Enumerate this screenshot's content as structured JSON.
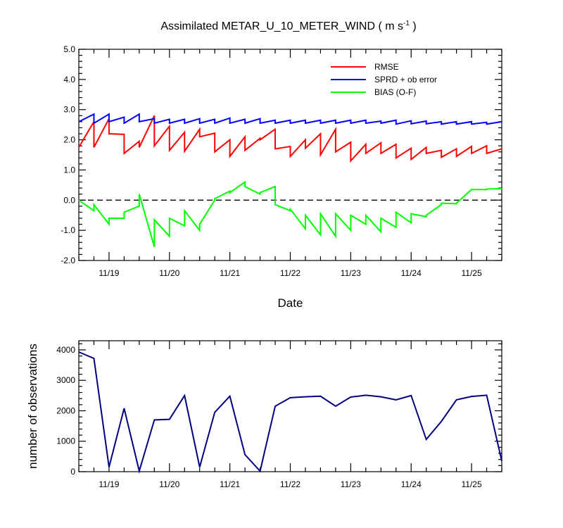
{
  "chart_data": [
    {
      "type": "line",
      "title": "Assimilated METAR_U_10_METER_WIND ( m s",
      "title_unit_exponent": "-1",
      "title_close": " )",
      "xlabel": "Date",
      "ylabel": "",
      "xlim": [
        18.5,
        25.5
      ],
      "ylim": [
        -2.0,
        5.0
      ],
      "yticks": [
        -2.0,
        -1.0,
        0.0,
        1.0,
        2.0,
        3.0,
        4.0,
        5.0
      ],
      "ytick_labels": [
        "-2.0",
        "-1.0",
        "0.0",
        "1.0",
        "2.0",
        "3.0",
        "4.0",
        "5.0"
      ],
      "xticks": [
        19,
        20,
        21,
        22,
        23,
        24,
        25
      ],
      "xtick_labels": [
        "11/19",
        "11/20",
        "11/21",
        "11/22",
        "11/23",
        "11/24",
        "11/25"
      ],
      "zero_line": true,
      "legend_position": "top-right",
      "series": [
        {
          "name": "RMSE",
          "color": "#ff0000",
          "points": [
            [
              18.5,
              1.75
            ],
            [
              18.75,
              2.6
            ],
            [
              18.75,
              1.75
            ],
            [
              19.0,
              2.7
            ],
            [
              19.0,
              2.2
            ],
            [
              19.25,
              2.18
            ],
            [
              19.25,
              1.55
            ],
            [
              19.5,
              1.95
            ],
            [
              19.5,
              1.75
            ],
            [
              19.75,
              2.8
            ],
            [
              19.75,
              1.8
            ],
            [
              20.0,
              2.45
            ],
            [
              20.0,
              1.65
            ],
            [
              20.25,
              2.25
            ],
            [
              20.25,
              1.62
            ],
            [
              20.5,
              2.35
            ],
            [
              20.5,
              2.1
            ],
            [
              20.75,
              2.22
            ],
            [
              20.75,
              1.6
            ],
            [
              21.0,
              2.0
            ],
            [
              21.0,
              1.45
            ],
            [
              21.25,
              2.1
            ],
            [
              21.25,
              1.65
            ],
            [
              21.5,
              2.05
            ],
            [
              21.5,
              2.0
            ],
            [
              21.75,
              2.35
            ],
            [
              21.75,
              1.7
            ],
            [
              22.0,
              1.78
            ],
            [
              22.0,
              1.45
            ],
            [
              22.25,
              2.0
            ],
            [
              22.25,
              1.72
            ],
            [
              22.5,
              2.2
            ],
            [
              22.5,
              1.5
            ],
            [
              22.75,
              2.35
            ],
            [
              22.75,
              1.6
            ],
            [
              23.0,
              1.92
            ],
            [
              23.0,
              1.3
            ],
            [
              23.25,
              1.85
            ],
            [
              23.25,
              1.55
            ],
            [
              23.5,
              1.9
            ],
            [
              23.5,
              1.55
            ],
            [
              23.75,
              1.85
            ],
            [
              23.75,
              1.4
            ],
            [
              24.0,
              1.72
            ],
            [
              24.0,
              1.35
            ],
            [
              24.25,
              1.75
            ],
            [
              24.25,
              1.55
            ],
            [
              24.5,
              1.65
            ],
            [
              24.5,
              1.42
            ],
            [
              24.75,
              1.7
            ],
            [
              24.75,
              1.45
            ],
            [
              25.0,
              1.78
            ],
            [
              25.0,
              1.55
            ],
            [
              25.25,
              1.8
            ],
            [
              25.25,
              1.55
            ],
            [
              25.5,
              1.7
            ]
          ]
        },
        {
          "name": "SPRD + ob error",
          "color": "#0000ff",
          "points": [
            [
              18.5,
              2.6
            ],
            [
              18.75,
              2.85
            ],
            [
              18.75,
              2.55
            ],
            [
              19.0,
              2.85
            ],
            [
              19.0,
              2.6
            ],
            [
              19.25,
              2.75
            ],
            [
              19.25,
              2.55
            ],
            [
              19.5,
              2.85
            ],
            [
              19.5,
              2.6
            ],
            [
              19.75,
              2.7
            ],
            [
              19.75,
              2.55
            ],
            [
              20.0,
              2.68
            ],
            [
              20.0,
              2.55
            ],
            [
              20.25,
              2.68
            ],
            [
              20.25,
              2.55
            ],
            [
              20.5,
              2.7
            ],
            [
              20.5,
              2.55
            ],
            [
              20.75,
              2.68
            ],
            [
              20.75,
              2.55
            ],
            [
              21.0,
              2.72
            ],
            [
              21.0,
              2.55
            ],
            [
              21.25,
              2.68
            ],
            [
              21.25,
              2.55
            ],
            [
              21.5,
              2.7
            ],
            [
              21.5,
              2.55
            ],
            [
              21.75,
              2.65
            ],
            [
              21.75,
              2.55
            ],
            [
              22.0,
              2.65
            ],
            [
              22.0,
              2.55
            ],
            [
              22.25,
              2.65
            ],
            [
              22.25,
              2.55
            ],
            [
              22.5,
              2.65
            ],
            [
              22.5,
              2.55
            ],
            [
              22.75,
              2.65
            ],
            [
              22.75,
              2.55
            ],
            [
              23.0,
              2.65
            ],
            [
              23.0,
              2.55
            ],
            [
              23.25,
              2.65
            ],
            [
              23.25,
              2.55
            ],
            [
              23.5,
              2.62
            ],
            [
              23.5,
              2.55
            ],
            [
              23.75,
              2.65
            ],
            [
              23.75,
              2.52
            ],
            [
              24.0,
              2.63
            ],
            [
              24.0,
              2.53
            ],
            [
              24.25,
              2.62
            ],
            [
              24.25,
              2.53
            ],
            [
              24.5,
              2.6
            ],
            [
              24.5,
              2.52
            ],
            [
              24.75,
              2.6
            ],
            [
              24.75,
              2.52
            ],
            [
              25.0,
              2.6
            ],
            [
              25.0,
              2.52
            ],
            [
              25.25,
              2.58
            ],
            [
              25.25,
              2.52
            ],
            [
              25.5,
              2.6
            ]
          ]
        },
        {
          "name": "BIAS (O-F)",
          "color": "#00ff00",
          "points": [
            [
              18.5,
              0.0
            ],
            [
              18.75,
              -0.35
            ],
            [
              18.75,
              -0.15
            ],
            [
              19.0,
              -0.8
            ],
            [
              19.0,
              -0.6
            ],
            [
              19.25,
              -0.6
            ],
            [
              19.25,
              -0.4
            ],
            [
              19.5,
              -0.2
            ],
            [
              19.5,
              0.2
            ],
            [
              19.75,
              -1.55
            ],
            [
              19.75,
              -0.65
            ],
            [
              20.0,
              -1.2
            ],
            [
              20.0,
              -0.6
            ],
            [
              20.25,
              -0.85
            ],
            [
              20.25,
              -0.35
            ],
            [
              20.5,
              -1.0
            ],
            [
              20.5,
              -0.8
            ],
            [
              20.75,
              0.0
            ],
            [
              20.75,
              0.05
            ],
            [
              21.0,
              0.3
            ],
            [
              21.0,
              0.25
            ],
            [
              21.25,
              0.6
            ],
            [
              21.25,
              0.45
            ],
            [
              21.5,
              0.2
            ],
            [
              21.5,
              0.25
            ],
            [
              21.75,
              0.45
            ],
            [
              21.75,
              -0.15
            ],
            [
              22.0,
              -0.35
            ],
            [
              22.0,
              -0.3
            ],
            [
              22.25,
              -0.95
            ],
            [
              22.25,
              -0.5
            ],
            [
              22.5,
              -1.15
            ],
            [
              22.5,
              -0.45
            ],
            [
              22.75,
              -1.2
            ],
            [
              22.75,
              -0.45
            ],
            [
              23.0,
              -1.0
            ],
            [
              23.0,
              -0.5
            ],
            [
              23.25,
              -0.8
            ],
            [
              23.25,
              -0.5
            ],
            [
              23.5,
              -1.05
            ],
            [
              23.5,
              -0.6
            ],
            [
              23.75,
              -0.9
            ],
            [
              23.75,
              -0.4
            ],
            [
              24.0,
              -0.75
            ],
            [
              24.0,
              -0.45
            ],
            [
              24.25,
              -0.55
            ],
            [
              24.25,
              -0.5
            ],
            [
              24.5,
              -0.15
            ],
            [
              24.5,
              -0.1
            ],
            [
              24.75,
              -0.12
            ],
            [
              24.75,
              -0.1
            ],
            [
              25.0,
              0.35
            ],
            [
              25.0,
              0.35
            ],
            [
              25.25,
              0.35
            ],
            [
              25.25,
              0.37
            ],
            [
              25.5,
              0.38
            ]
          ]
        }
      ]
    },
    {
      "type": "line",
      "title": "",
      "xlabel": "",
      "ylabel": "number of observations",
      "xlim": [
        18.5,
        25.5
      ],
      "ylim": [
        0,
        4300
      ],
      "yticks": [
        0,
        1000,
        2000,
        3000,
        4000
      ],
      "ytick_labels": [
        "0",
        "1000",
        "2000",
        "3000",
        "4000"
      ],
      "xticks": [
        19,
        20,
        21,
        22,
        23,
        24,
        25
      ],
      "xtick_labels": [
        "11/19",
        "11/20",
        "11/21",
        "11/22",
        "11/23",
        "11/24",
        "11/25"
      ],
      "series": [
        {
          "name": "observations",
          "color": "#000080",
          "x": [
            18.5,
            18.75,
            19.0,
            19.25,
            19.5,
            19.75,
            20.0,
            20.25,
            20.5,
            20.75,
            21.0,
            21.25,
            21.5,
            21.75,
            22.0,
            22.25,
            22.5,
            22.75,
            23.0,
            23.25,
            23.5,
            23.75,
            24.0,
            24.25,
            24.5,
            24.75,
            25.0,
            25.25,
            25.5
          ],
          "values": [
            3930,
            3720,
            150,
            2080,
            20,
            1700,
            1720,
            2500,
            150,
            1950,
            2480,
            560,
            20,
            2150,
            2430,
            2460,
            2480,
            2150,
            2450,
            2510,
            2460,
            2360,
            2500,
            1060,
            1650,
            2360,
            2470,
            2510,
            350
          ]
        }
      ]
    }
  ]
}
